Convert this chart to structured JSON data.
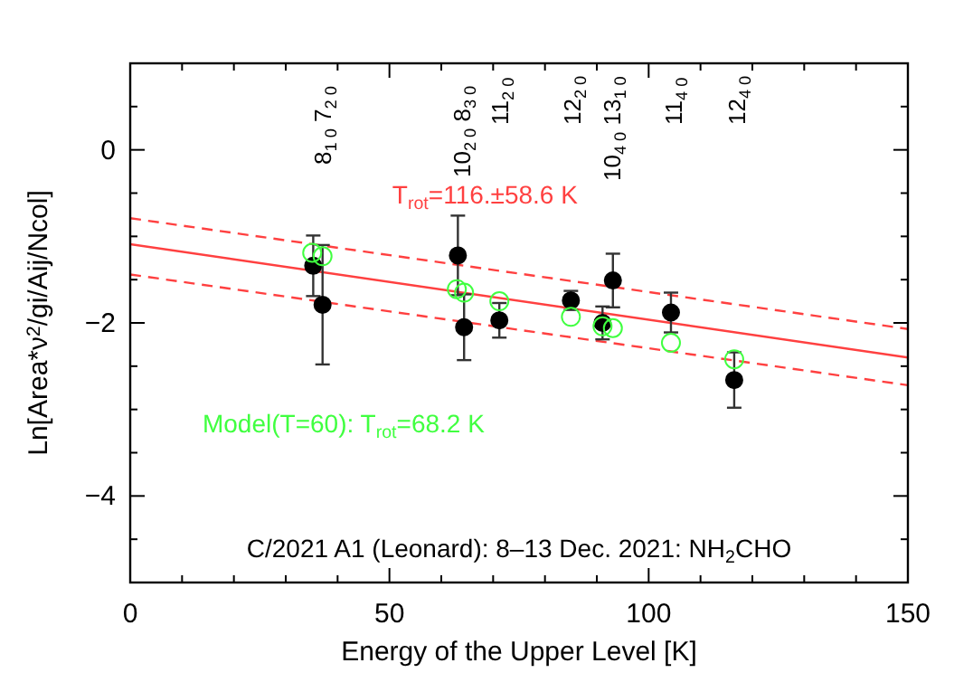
{
  "chart_data": {
    "type": "scatter",
    "xlabel": "Energy of the Upper Level [K]",
    "ylabel": "Ln[Area*ν$^{2}$/gi/Aij/Ncol]",
    "xlim": [
      0,
      150
    ],
    "ylim": [
      -5,
      1
    ],
    "xticks": [
      0,
      {
        "value": 10,
        "label": null
      },
      {
        "value": 20,
        "label": null
      },
      {
        "value": 30,
        "label": null
      },
      {
        "value": 40,
        "label": null
      },
      50,
      {
        "value": 60,
        "label": null
      },
      {
        "value": 70,
        "label": null
      },
      {
        "value": 80,
        "label": null
      },
      {
        "value": 90,
        "label": null
      },
      100,
      {
        "value": 110,
        "label": null
      },
      {
        "value": 120,
        "label": null
      },
      {
        "value": 130,
        "label": null
      },
      {
        "value": 140,
        "label": null
      },
      150
    ],
    "yticks": [
      {
        "value": -4.5,
        "label": null
      },
      {
        "value": -4,
        "label": "−4"
      },
      {
        "value": -3.5,
        "label": null
      },
      {
        "value": -3,
        "label": null
      },
      {
        "value": -2.5,
        "label": null
      },
      {
        "value": -2,
        "label": "−2"
      },
      {
        "value": -1.5,
        "label": null
      },
      {
        "value": -1,
        "label": null
      },
      {
        "value": -0.5,
        "label": null
      },
      0,
      {
        "value": 0.5,
        "label": null
      }
    ],
    "grid": false,
    "marker": "circle",
    "series": [
      {
        "type": "line",
        "name": "T$_{rot}$=116.±58.6 K",
        "color": "#ff4040",
        "x": [
          0,
          150
        ],
        "values": [
          -1.09,
          -2.4
        ],
        "line_style": "solid",
        "marker": "none"
      },
      {
        "type": "line",
        "color": "#ff4040",
        "x": [
          0,
          150
        ],
        "values": [
          -0.79,
          -2.07
        ],
        "line_style": "dashed",
        "marker": "none"
      },
      {
        "type": "line",
        "color": "#ff4040",
        "x": [
          0,
          150
        ],
        "values": [
          -1.44,
          -2.72
        ],
        "line_style": "dashed",
        "marker": "none"
      },
      {
        "color": "#000000",
        "x": [
          35.3,
          37.1,
          63.2,
          64.4,
          71.2,
          85.0,
          91.1,
          93.1,
          104.3,
          116.5
        ],
        "values": [
          -1.34,
          -1.79,
          -1.22,
          -2.05,
          -1.97,
          -1.74,
          -2.0,
          -1.51,
          -1.88,
          -2.66
        ],
        "errors": [
          0.35,
          0.69,
          0.46,
          0.38,
          0.2,
          0.11,
          0.19,
          0.31,
          0.23,
          0.32
        ]
      },
      {
        "name": "Model(T=60): T$_{rot}$=68.2 K",
        "color": "#40ff40",
        "x": [
          35.1,
          37.1,
          63.0,
          64.4,
          71.2,
          85.0,
          91.1,
          93.1,
          104.3,
          116.5
        ],
        "values": [
          -1.19,
          -1.23,
          -1.61,
          -1.65,
          -1.75,
          -1.93,
          -2.04,
          -2.06,
          -2.23,
          -2.42
        ]
      }
    ],
    "annotations": [
      "8$_{1 0}$ 7$_{2 0}$",
      "10$_{2 0}$ 8$_{3 0}$",
      "11$_{2 0}$",
      "12$_{2 0}$",
      "10$_{4 0}$ 13$_{1 0}$",
      "11$_{4 0}$",
      "12$_{4 0}$",
      "C/2021 A1 (Leonard): 8–13 Dec. 2021: NH$_{2}$CHO"
    ]
  }
}
